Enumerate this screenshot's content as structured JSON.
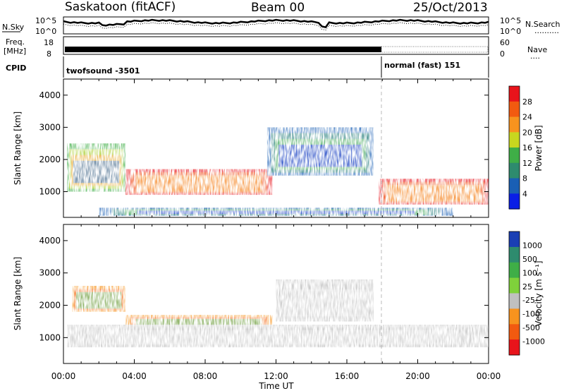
{
  "header": {
    "station": "Saskatoon (fitACF)",
    "beam": "Beam 00",
    "date": "25/Oct/2013"
  },
  "strips": {
    "noise": {
      "left_label": "N.Sky",
      "right_label": "N.Search",
      "right_line": "··········",
      "left_ticks": [
        "10^5",
        "10^0"
      ],
      "right_ticks": [
        "10^5",
        "10^0"
      ]
    },
    "freq": {
      "left_label_1": "Freq.",
      "left_label_2": "[MHz]",
      "right_label": "Nave",
      "right_line": "····",
      "left_ticks": [
        "18",
        "8"
      ],
      "right_ticks": [
        "60",
        "0"
      ]
    },
    "cpid": {
      "label": "CPID",
      "segments": [
        {
          "name": "twofsound -3501",
          "start": "00:00",
          "end": "18:00"
        },
        {
          "name": "normal (fast) 151",
          "start": "18:00",
          "end": "24:00"
        }
      ]
    }
  },
  "chart_data": [
    {
      "type": "heatmap",
      "title": "",
      "xlabel": "",
      "ylabel": "Slant Range [km]",
      "x_range_hours": [
        0,
        24
      ],
      "ylim": [
        200,
        4500
      ],
      "yticks": [
        "1000",
        "2000",
        "3000",
        "4000"
      ],
      "colorbar": {
        "label": "Power [dB]",
        "ticks": [
          "28",
          "24",
          "20",
          "16",
          "12",
          "8",
          "4"
        ],
        "colors": [
          "#e8141b",
          "#f25a10",
          "#f7931e",
          "#c8d71f",
          "#3fae47",
          "#2e8b6e",
          "#1a5fb4",
          "#0a1ee6"
        ]
      },
      "regions": [
        {
          "start": 3.5,
          "end": 11.8,
          "range_low": 900,
          "range_high": 1700,
          "level": "high"
        },
        {
          "start": 17.8,
          "end": 24,
          "range_low": 600,
          "range_high": 1400,
          "level": "high"
        },
        {
          "start": 0.2,
          "end": 3.5,
          "range_low": 1000,
          "range_high": 2500,
          "level": "mixed"
        },
        {
          "start": 11.5,
          "end": 17.5,
          "range_low": 1500,
          "range_high": 3000,
          "level": "low"
        },
        {
          "start": 2.0,
          "end": 22.0,
          "range_low": 250,
          "range_high": 500,
          "level": "low"
        }
      ]
    },
    {
      "type": "heatmap",
      "title": "",
      "xlabel": "Time UT",
      "ylabel": "Slant Range [km]",
      "x_range_hours": [
        0,
        24
      ],
      "ylim": [
        200,
        4500
      ],
      "yticks": [
        "1000",
        "2000",
        "3000",
        "4000"
      ],
      "xticks": [
        "00:00",
        "04:00",
        "08:00",
        "12:00",
        "16:00",
        "20:00",
        "00:00"
      ],
      "colorbar": {
        "label": "Velocity [m s⁻¹]",
        "ticks": [
          "1000",
          "500",
          "100",
          "25",
          "-25",
          "-100",
          "-500",
          "-1000"
        ],
        "colors": [
          "#1a3fb4",
          "#2e8b6e",
          "#3fae47",
          "#7fd13b",
          "#c0c0c0",
          "#f7931e",
          "#f25a10",
          "#e8141b"
        ]
      },
      "regions": [
        {
          "start": 3.5,
          "end": 11.8,
          "range_low": 1200,
          "range_high": 1700,
          "level": "negative"
        },
        {
          "start": 0.2,
          "end": 24,
          "range_low": 700,
          "range_high": 1400,
          "level": "ground"
        },
        {
          "start": 12,
          "end": 17.5,
          "range_low": 1500,
          "range_high": 2800,
          "level": "ground"
        },
        {
          "start": 0.5,
          "end": 3.5,
          "range_low": 1800,
          "range_high": 2600,
          "level": "negative"
        }
      ]
    }
  ]
}
